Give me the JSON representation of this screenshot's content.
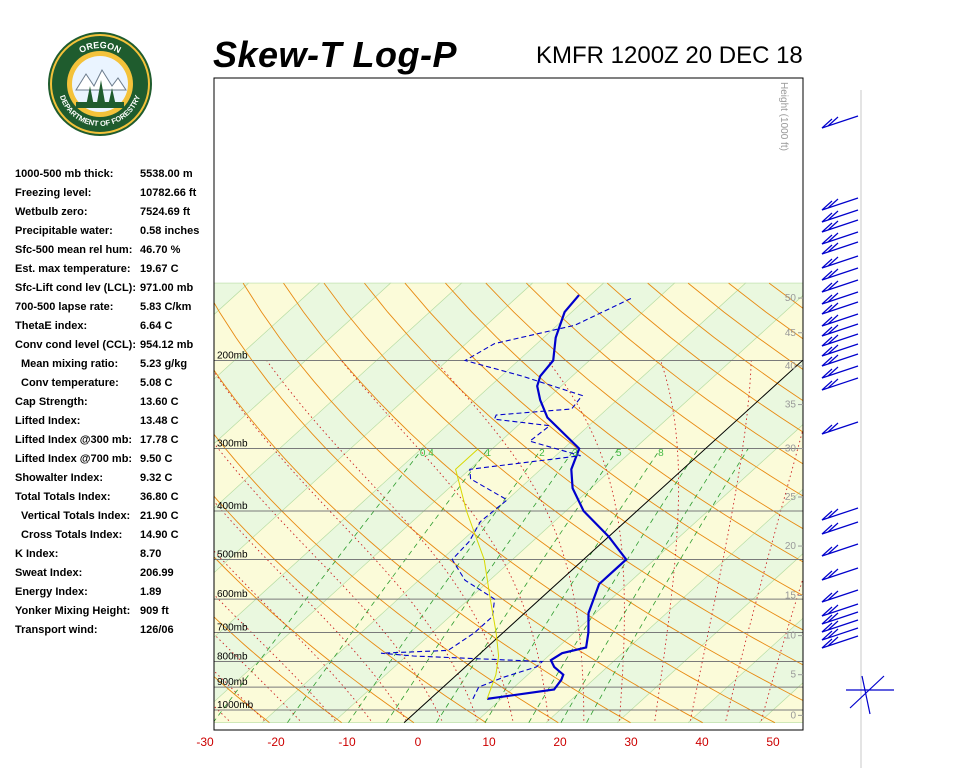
{
  "logo": {
    "top_text": "OREGON",
    "bottom_text": "DEPARTMENT OF FORESTRY",
    "ring_color": "#1f5c2e",
    "inner_color": "#f4c23a"
  },
  "header": {
    "title": "Skew-T Log-P",
    "station_time": "KMFR 1200Z 20 DEC 18"
  },
  "indices": [
    {
      "label": "1000-500 mb thick:",
      "value": "5538.00 m",
      "indent": false
    },
    {
      "label": "Freezing level:",
      "value": "10782.66 ft",
      "indent": false
    },
    {
      "label": "Wetbulb zero:",
      "value": "7524.69 ft",
      "indent": false
    },
    {
      "label": "Precipitable water:",
      "value": "0.58 inches",
      "indent": false
    },
    {
      "label": "Sfc-500 mean rel hum:",
      "value": "46.70 %",
      "indent": false
    },
    {
      "label": "Est. max temperature:",
      "value": "19.67 C",
      "indent": false
    },
    {
      "label": "Sfc-Lift cond lev (LCL):",
      "value": "971.00 mb",
      "indent": false
    },
    {
      "label": "700-500 lapse rate:",
      "value": "5.83 C/km",
      "indent": false
    },
    {
      "label": "ThetaE index:",
      "value": "6.64 C",
      "indent": false
    },
    {
      "label": "Conv cond level (CCL):",
      "value": "954.12 mb",
      "indent": false
    },
    {
      "label": "Mean mixing ratio:",
      "value": "5.23 g/kg",
      "indent": true
    },
    {
      "label": "Conv temperature:",
      "value": "5.08 C",
      "indent": true
    },
    {
      "label": "Cap Strength:",
      "value": "13.60 C",
      "indent": false
    },
    {
      "label": "Lifted Index:",
      "value": "13.48 C",
      "indent": false
    },
    {
      "label": "Lifted Index @300 mb:",
      "value": "17.78 C",
      "indent": false
    },
    {
      "label": "Lifted Index @700 mb:",
      "value": "9.50 C",
      "indent": false
    },
    {
      "label": "Showalter Index:",
      "value": "9.32 C",
      "indent": false
    },
    {
      "label": "Total Totals Index:",
      "value": "36.80 C",
      "indent": false
    },
    {
      "label": "Vertical Totals Index:",
      "value": "21.90 C",
      "indent": true
    },
    {
      "label": "Cross Totals Index:",
      "value": "14.90 C",
      "indent": true
    },
    {
      "label": "K Index:",
      "value": "8.70",
      "indent": false
    },
    {
      "label": "Sweat Index:",
      "value": "206.99",
      "indent": false
    },
    {
      "label": "Energy Index:",
      "value": "1.89",
      "indent": false
    },
    {
      "label": "Yonker Mixing Height:",
      "value": "909 ft",
      "indent": false
    },
    {
      "label": "Transport wind:",
      "value": "126/06",
      "indent": false
    }
  ],
  "chart_data": {
    "type": "line",
    "title": "Skew-T Log-P",
    "temperature_ticks": [
      "-30",
      "-20",
      "-10",
      "0",
      "10",
      "20",
      "30",
      "40",
      "50"
    ],
    "pressure_labels": [
      {
        "p": 200,
        "label": "200mb"
      },
      {
        "p": 300,
        "label": "300mb"
      },
      {
        "p": 400,
        "label": "400mb"
      },
      {
        "p": 500,
        "label": "500mb"
      },
      {
        "p": 600,
        "label": "600mb"
      },
      {
        "p": 700,
        "label": "700mb"
      },
      {
        "p": 800,
        "label": "800mb"
      },
      {
        "p": 900,
        "label": "900mb"
      },
      {
        "p": 1000,
        "label": "1000mb"
      }
    ],
    "height_axis_label": "Height (1000 ft)",
    "height_ticks": [
      {
        "p": 1025,
        "label": "0"
      },
      {
        "p": 850,
        "label": "5"
      },
      {
        "p": 710,
        "label": "10"
      },
      {
        "p": 590,
        "label": "15"
      },
      {
        "p": 470,
        "label": "20"
      },
      {
        "p": 375,
        "label": "25"
      },
      {
        "p": 300,
        "label": "30"
      },
      {
        "p": 245,
        "label": "35"
      },
      {
        "p": 205,
        "label": "40"
      },
      {
        "p": 176,
        "label": "45"
      },
      {
        "p": 150,
        "label": "50"
      }
    ],
    "mixing_ratio_labels": [
      "0.4",
      "1",
      "2",
      "3",
      "5",
      "8"
    ],
    "series": [
      {
        "name": "",
        "role": "temperature",
        "color": "#0000cc",
        "points": [
          {
            "p": 950,
            "t": 8.0
          },
          {
            "p": 945,
            "t": 9.0
          },
          {
            "p": 930,
            "t": 12.0
          },
          {
            "p": 910,
            "t": 16.0
          },
          {
            "p": 870,
            "t": 15.5
          },
          {
            "p": 850,
            "t": 15.0
          },
          {
            "p": 820,
            "t": 12.5
          },
          {
            "p": 795,
            "t": 11.0
          },
          {
            "p": 770,
            "t": 11.5
          },
          {
            "p": 750,
            "t": 14.0
          },
          {
            "p": 700,
            "t": 12.0
          },
          {
            "p": 640,
            "t": 9.0
          },
          {
            "p": 560,
            "t": 6.0
          },
          {
            "p": 520,
            "t": 6.0
          },
          {
            "p": 500,
            "t": 6.0
          },
          {
            "p": 450,
            "t": 0.0
          },
          {
            "p": 400,
            "t": -7.5
          },
          {
            "p": 360,
            "t": -12.6
          },
          {
            "p": 330,
            "t": -15.7
          },
          {
            "p": 300,
            "t": -17.8
          },
          {
            "p": 260,
            "t": -27.1
          },
          {
            "p": 240,
            "t": -30.8
          },
          {
            "p": 225,
            "t": -33.4
          },
          {
            "p": 215,
            "t": -34.5
          },
          {
            "p": 200,
            "t": -35.1
          },
          {
            "p": 180,
            "t": -38.3
          },
          {
            "p": 160,
            "t": -41.0
          },
          {
            "p": 148,
            "t": -41.6
          }
        ]
      },
      {
        "name": "",
        "role": "dewpoint",
        "color": "#0000cc",
        "points": [
          {
            "p": 950,
            "t": 6.0
          },
          {
            "p": 900,
            "t": 5.0
          },
          {
            "p": 860,
            "t": 7.0
          },
          {
            "p": 820,
            "t": 10.0
          },
          {
            "p": 800,
            "t": 10.0
          },
          {
            "p": 780,
            "t": -9.0
          },
          {
            "p": 770,
            "t": -14.0
          },
          {
            "p": 760,
            "t": -5.0
          },
          {
            "p": 700,
            "t": -4.0
          },
          {
            "p": 650,
            "t": -4.0
          },
          {
            "p": 600,
            "t": -6.4
          },
          {
            "p": 550,
            "t": -13.5
          },
          {
            "p": 500,
            "t": -18.5
          },
          {
            "p": 460,
            "t": -18.9
          },
          {
            "p": 420,
            "t": -20.4
          },
          {
            "p": 380,
            "t": -20.0
          },
          {
            "p": 345,
            "t": -28.4
          },
          {
            "p": 330,
            "t": -30.0
          },
          {
            "p": 310,
            "t": -16.5
          },
          {
            "p": 290,
            "t": -25.9
          },
          {
            "p": 270,
            "t": -25.5
          },
          {
            "p": 262,
            "t": -34.3
          },
          {
            "p": 257,
            "t": -34.7
          },
          {
            "p": 250,
            "t": -25.0
          },
          {
            "p": 235,
            "t": -25.6
          },
          {
            "p": 215,
            "t": -37.0
          },
          {
            "p": 200,
            "t": -47.5
          },
          {
            "p": 185,
            "t": -46.0
          },
          {
            "p": 170,
            "t": -37.5
          },
          {
            "p": 150,
            "t": -33.7
          }
        ]
      },
      {
        "name": "",
        "role": "parcel",
        "color": "#d8d800",
        "points": [
          {
            "p": 950,
            "t": 8.0
          },
          {
            "p": 850,
            "t": 5.5
          },
          {
            "p": 780,
            "t": 3.0
          },
          {
            "p": 700,
            "t": -1.0
          },
          {
            "p": 600,
            "t": -7.0
          },
          {
            "p": 500,
            "t": -14.0
          },
          {
            "p": 400,
            "t": -24.0
          },
          {
            "p": 330,
            "t": -32.0
          },
          {
            "p": 300,
            "t": -32.0
          }
        ]
      }
    ],
    "wind_barbs_count": 32
  }
}
